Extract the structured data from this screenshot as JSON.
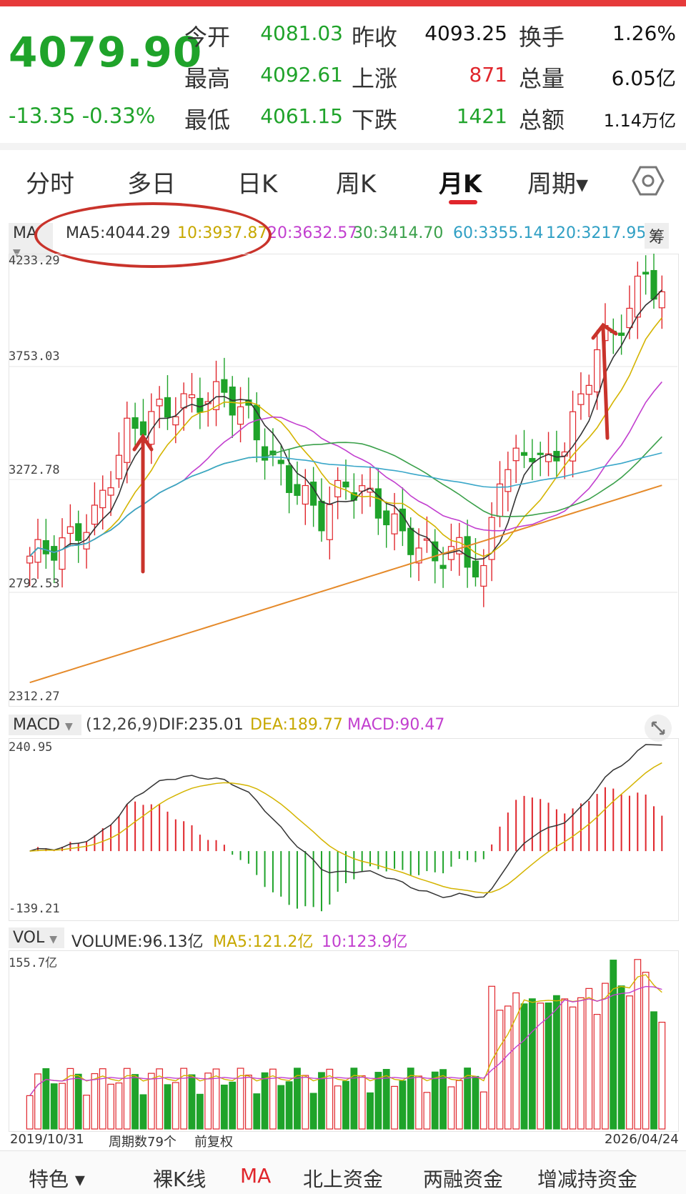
{
  "quote": {
    "price": "4079.90",
    "change": "-13.35",
    "change_pct": "-0.33%",
    "rows": [
      {
        "l1": "今开",
        "v1": "4081.03",
        "l2": "昨收",
        "v2": "4093.25",
        "l3": "换手",
        "v3": "1.26%"
      },
      {
        "l1": "最高",
        "v1": "4092.61",
        "l2": "上涨",
        "v2": "871",
        "l3": "总量",
        "v3": "6.05亿"
      },
      {
        "l1": "最低",
        "v1": "4061.15",
        "l2": "下跌",
        "v2": "1421",
        "l3": "总额",
        "v3": "1.14万亿"
      }
    ]
  },
  "tabs": [
    "分时",
    "多日",
    "日K",
    "周K",
    "月K",
    "周期▾"
  ],
  "ma_legend": {
    "selector": "MA",
    "ma5": "MA5:4044.29",
    "ma10": "10:3937.87",
    "ma20": "20:3632.57",
    "ma30": "30:3414.70",
    "ma60": "60:3355.14",
    "ma120": "120:3217.95",
    "chip": "筹"
  },
  "price_axis": [
    "4233.29",
    "3753.03",
    "3272.78",
    "2792.53",
    "2312.27"
  ],
  "macd_legend": {
    "selector": "MACD",
    "params": "(12,26,9)",
    "dif": "DIF:235.01",
    "dea": "DEA:189.77",
    "macd": "MACD:90.47"
  },
  "macd_axis": [
    "240.95",
    "-139.21"
  ],
  "vol_legend": {
    "selector": "VOL",
    "volume": "VOLUME:96.13亿",
    "ma5": "MA5:121.2亿",
    "ma10": "10:123.9亿"
  },
  "vol_axis": [
    "155.7亿"
  ],
  "footer": {
    "start_date": "2019/10/31",
    "period_count": "周期数79个",
    "adjust": "前复权",
    "end_date": "2026/04/24"
  },
  "bottom_tabs": [
    "特色 ▾",
    "裸K线",
    "MA",
    "北上资金",
    "两融资金",
    "增减持资金"
  ],
  "colors": {
    "up": "#e0262c",
    "down": "#1fa32a",
    "ma5": "#333333",
    "ma10": "#d4b400",
    "ma20": "#c23fcf",
    "ma30": "#3aa04a",
    "ma60": "#3aa7c9",
    "ma120": "#e58a2a"
  },
  "chart_data": {
    "type": "candlestick",
    "period": "monthly",
    "x_start": "2019/10/31",
    "x_end": "2026/04/24",
    "count": 79,
    "ylim": [
      2312.27,
      4233.29
    ],
    "macd_ylim": [
      -139.21,
      240.95
    ],
    "vol_ylim": [
      0,
      155.7
    ],
    "last": {
      "open": 4081.03,
      "high": 4092.61,
      "low": 4061.15,
      "close": 4079.9
    },
    "ma_last": {
      "ma5": 4044.29,
      "ma10": 3937.87,
      "ma20": 3632.57,
      "ma30": 3414.7,
      "ma60": 3355.14,
      "ma120": 3217.95
    },
    "macd_last": {
      "dif": 235.01,
      "dea": 189.77,
      "macd": 90.47
    },
    "volume_last": 96.13,
    "volume_ma5": 121.2,
    "volume_ma10": 123.9
  }
}
